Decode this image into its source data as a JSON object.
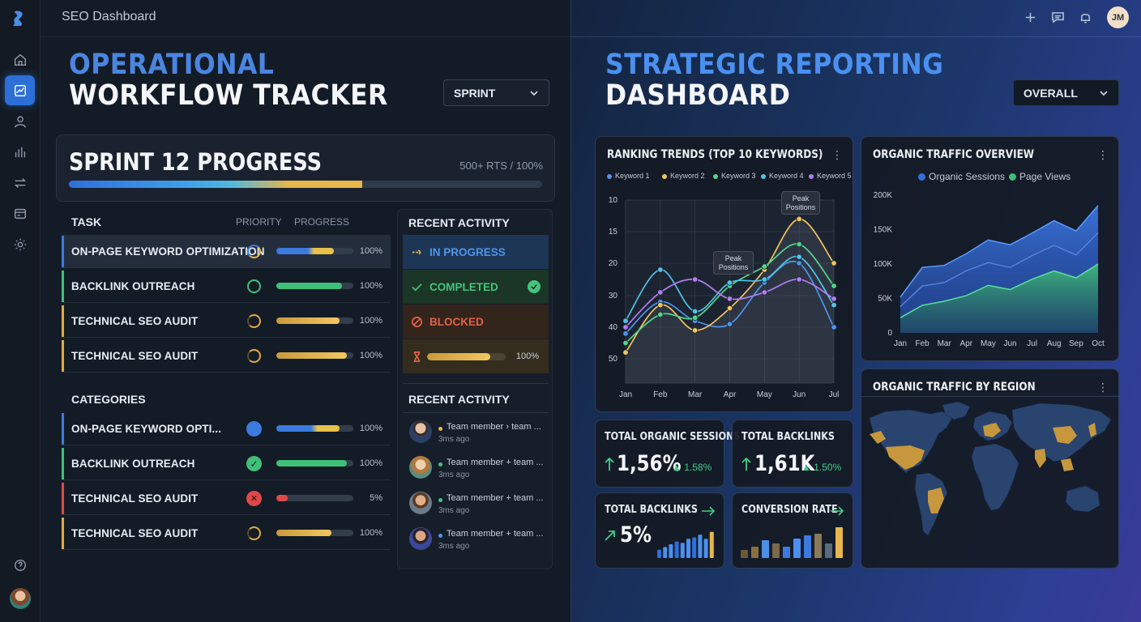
{
  "app": {
    "title": "SEO Dashboard",
    "user_initials": "JM"
  },
  "left": {
    "title_accent": "OPERATIONAL",
    "title_main": "WORKFLOW TRACKER",
    "dropdown": "SPRINT",
    "sprint": {
      "title": "SPRINT 12 PROGRESS",
      "meta": "500+ RTS / 100%",
      "progress": 0.62
    },
    "tasks_header": {
      "task": "TASK",
      "priority": "PRIORITY",
      "progress": "PROGRESS"
    },
    "tasks": [
      {
        "label": "ON-PAGE KEYWORD OPTIMIZATION",
        "pct": "100%",
        "progress": 0.75,
        "ring": "blue-yellow",
        "stripe": "#3b7be0"
      },
      {
        "label": "BACKLINK OUTREACH",
        "pct": "100%",
        "progress": 0.85,
        "ring": "green",
        "stripe": "#3fbf78"
      },
      {
        "label": "TECHNICAL SEO AUDIT",
        "pct": "100%",
        "progress": 0.82,
        "ring": "yellow",
        "stripe": "#e3a942"
      },
      {
        "label": "TECHNICAL SEO AUDIT",
        "pct": "100%",
        "progress": 0.92,
        "ring": "yellow",
        "stripe": "#e3a942"
      }
    ],
    "categories_header": "CATEGORIES",
    "categories": [
      {
        "label": "ON-PAGE KEYWORD OPTI...",
        "pct": "100%",
        "progress": 0.82,
        "icon": "blue-dot",
        "stripe": "#3b7be0"
      },
      {
        "label": "BACKLINK OUTREACH",
        "pct": "100%",
        "progress": 0.92,
        "icon": "check-icon",
        "stripe": "#3fbf78"
      },
      {
        "label": "TECHNICAL SEO AUDIT",
        "pct": "5%",
        "progress": 0.15,
        "icon": "x-icon",
        "stripe": "#e04848"
      },
      {
        "label": "TECHNICAL SEO AUDIT",
        "pct": "100%",
        "progress": 0.72,
        "icon": "yellow-ring",
        "stripe": "#e3a942"
      }
    ],
    "activity_title": "RECENT ACTIVITY",
    "statuses": [
      {
        "label": "IN PROGRESS",
        "color": "#4f95ea"
      },
      {
        "label": "COMPLETED",
        "color": "#43c57d"
      },
      {
        "label": "BLOCKED",
        "color": "#e46147"
      }
    ],
    "status_progress": {
      "pct": "100%",
      "progress": 0.8
    },
    "feed_title": "RECENT ACTIVITY",
    "feed": [
      {
        "text": "Team member › team ...",
        "time": "3ms ago",
        "dot": "#e8b64a"
      },
      {
        "text": "Team member + team ...",
        "time": "3ms ago",
        "dot": "#43c57d"
      },
      {
        "text": "Team member + team ...",
        "time": "3ms ago",
        "dot": "#43c57d"
      },
      {
        "text": "Team member + team ...",
        "time": "3ms ago",
        "dot": "#4f95ea"
      }
    ]
  },
  "right": {
    "title_accent": "STRATEGIC REPORTING",
    "title_main": "DASHBOARD",
    "dropdown": "OVERALL",
    "ranking": {
      "title": "RANKING TRENDS (TOP 10 KEYWORDS)",
      "annotation1": "Peak Positions",
      "annotation2": "Peak Positions"
    },
    "traffic": {
      "title": "ORGANIC TRAFFIC OVERVIEW"
    },
    "region": {
      "title": "ORGANIC TRAFFIC BY REGION"
    },
    "kpis": [
      {
        "title": "TOTAL ORGANIC SESSIONS",
        "value": "1,56%",
        "delta": "1.58%"
      },
      {
        "title": "TOTAL BACKLINKS",
        "value": "1,61K",
        "delta": "1.50%"
      },
      {
        "title": "TOTAL BACKLINKS",
        "value": "5%"
      },
      {
        "title": "CONVERSION RATE"
      }
    ],
    "backlinks_spark": [
      0.3,
      0.4,
      0.5,
      0.6,
      0.55,
      0.7,
      0.75,
      0.85,
      0.7,
      0.95
    ],
    "conversion_spark": [
      0.25,
      0.35,
      0.55,
      0.45,
      0.35,
      0.6,
      0.7,
      0.75,
      0.45,
      0.95
    ]
  },
  "chart_data": [
    {
      "type": "line",
      "title": "RANKING TRENDS (TOP 10 KEYWORDS)",
      "x": [
        "Jan",
        "Feb",
        "Mar",
        "Apr",
        "May",
        "Jun",
        "Jul"
      ],
      "yticks": [
        "10",
        "15",
        "20",
        "30",
        "40",
        "50"
      ],
      "y_inverted": true,
      "series": [
        {
          "name": "Keyword 1",
          "color": "#4f95ea",
          "values": [
            42,
            32,
            38,
            39,
            26,
            20,
            40
          ]
        },
        {
          "name": "Keyword 2",
          "color": "#f2c55c",
          "values": [
            48,
            33,
            41,
            34,
            22,
            13,
            20
          ]
        },
        {
          "name": "Keyword 3",
          "color": "#53d68c",
          "values": [
            45,
            36,
            37,
            27,
            21,
            17,
            27
          ]
        },
        {
          "name": "Keyword 4",
          "color": "#52c3e6",
          "values": [
            38,
            22,
            35,
            26,
            25,
            19,
            33
          ]
        },
        {
          "name": "Keyword 5",
          "color": "#b07ef0",
          "values": [
            40,
            29,
            25,
            31,
            29,
            25,
            31
          ]
        }
      ]
    },
    {
      "type": "area",
      "title": "ORGANIC TRAFFIC OVERVIEW",
      "x": [
        "Jan",
        "Feb",
        "Mar",
        "Apr",
        "May",
        "Jun",
        "Jul",
        "Aug",
        "Sep",
        "Oct"
      ],
      "yticks": [
        "0",
        "50K",
        "100K",
        "150K",
        "200K"
      ],
      "ylim": [
        0,
        200000
      ],
      "series": [
        {
          "name": "Organic Sessions",
          "color": "#2f6fdc",
          "values": [
            52000,
            95000,
            98000,
            115000,
            135000,
            128000,
            145000,
            163000,
            148000,
            185000
          ]
        },
        {
          "name": "Page Views",
          "color": "#3fbf78",
          "values": [
            22000,
            40000,
            46000,
            54000,
            69000,
            63000,
            78000,
            90000,
            80000,
            100000
          ]
        },
        {
          "name": "",
          "color": "#4d78e8",
          "values": [
            38000,
            68000,
            73000,
            90000,
            102000,
            95000,
            112000,
            127000,
            113000,
            145000
          ]
        }
      ]
    }
  ]
}
